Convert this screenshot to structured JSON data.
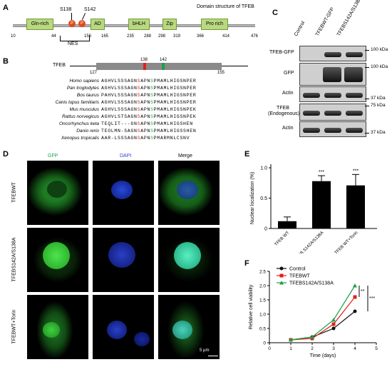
{
  "panelA": {
    "letter": "A",
    "title": "Domain structure of TFEB",
    "sites": [
      "S138",
      "S142"
    ],
    "nes": "NES",
    "domains": [
      {
        "name": "Gln-rich"
      },
      {
        "name": "AD"
      },
      {
        "name": "bHLH"
      },
      {
        "name": "Zip"
      },
      {
        "name": "Pro rich"
      }
    ],
    "positions": [
      "10",
      "44",
      "156",
      "165",
      "235",
      "288",
      "298",
      "319",
      "366",
      "414",
      "476"
    ]
  },
  "panelB": {
    "letter": "B",
    "protein": "TFEB",
    "ruler": [
      "127",
      "138",
      "142",
      "155"
    ],
    "rows": [
      {
        "species": "Homo sapiens",
        "pre": "AGHVLSSSAGN",
        "s1": "S",
        "mid": "APN",
        "s2": "S",
        "post": "PMAMLHIGSNPER"
      },
      {
        "species": "Pan troglodytes",
        "pre": "AGHVLSSSAGN",
        "s1": "S",
        "mid": "APN",
        "s2": "S",
        "post": "PMAMLHIGSNPER"
      },
      {
        "species": "Bos taurus",
        "pre": "PAHVLSSSAGN",
        "s1": "S",
        "mid": "APN",
        "s2": "S",
        "post": "PMAMLHIGSNPER"
      },
      {
        "species": "Canis lupus familiaris",
        "pre": "AGHVLSSSAGN",
        "s1": "S",
        "mid": "APN",
        "s2": "S",
        "post": "PMAMLHIGSNPER"
      },
      {
        "species": "Mus musculus",
        "pre": "AGHVLSSSAGN",
        "s1": "S",
        "mid": "APN",
        "s2": "S",
        "post": "PMAMLHIGSNPEK"
      },
      {
        "species": "Rattus norvegicus",
        "pre": "AGHVLSTSAGN",
        "s1": "S",
        "mid": "APN",
        "s2": "S",
        "post": "PMAMLHIGSNPEK"
      },
      {
        "species": "Oncorhynchus keta",
        "pre": "TEQLIT---GN",
        "s1": "S",
        "mid": "APN",
        "s2": "S",
        "post": "PMAMLHIGSHEN"
      },
      {
        "species": "Danio rerio",
        "pre": "TEOLMN-SAGN",
        "s1": "S",
        "mid": "APN",
        "s2": "S",
        "post": "PMAMLHIGSSHEN"
      },
      {
        "species": "Xenopus tropicalis",
        "pre": "AAR-LSSSAGN",
        "s1": "S",
        "mid": "APN",
        "s2": "S",
        "post": "PMARMNLCSNV"
      }
    ]
  },
  "panelC": {
    "letter": "C",
    "columns": [
      "Control",
      "TFEBWT-GFP",
      "TFEBS142A/S138A-GFP"
    ],
    "blots": [
      "TFEB-GFP",
      "GFP",
      "Actin",
      "TFEB (Endogenous)",
      "Actin"
    ],
    "markers": [
      "100 kDa",
      "100 kDa",
      "37 kDa",
      "75 kDa",
      "37 kDa"
    ]
  },
  "panelD": {
    "letter": "D",
    "channels": [
      "GFP",
      "DAPI",
      "Merge"
    ],
    "rows": [
      "TFEBWT",
      "TFEBS142A/S138A",
      "TFEBWT+Torin"
    ],
    "scale": "5 μm"
  },
  "panelE": {
    "letter": "E",
    "ylabel": "Nuclear localization (%)",
    "sig": [
      "***",
      "***"
    ]
  },
  "panelF": {
    "letter": "F",
    "ylabel": "Relative cell viability",
    "xlabel": "Time (days)",
    "stars": [
      "**",
      "***"
    ]
  },
  "chart_data": [
    {
      "type": "bar",
      "categories": [
        "TFEB WT",
        "TFEB S142A/S138A",
        "TFEB WT+Torin"
      ],
      "values": [
        0.12,
        0.78,
        0.71
      ],
      "errors": [
        0.07,
        0.09,
        0.18
      ],
      "ylabel": "Nuclear localization (%)",
      "ylim": [
        0,
        1.0
      ],
      "yticks": [
        "0",
        "0.5",
        "1.0"
      ],
      "bar_color": "#000000"
    },
    {
      "type": "line",
      "x": [
        1,
        2,
        3,
        4
      ],
      "xlim": [
        0,
        5
      ],
      "xticks": [
        "0",
        "1",
        "2",
        "3",
        "4",
        "5"
      ],
      "ylim": [
        0,
        2.5
      ],
      "yticks": [
        "0",
        "0.5",
        "1.0",
        "1.5",
        "2.0",
        "2.5"
      ],
      "xlabel": "Time (days)",
      "ylabel": "Relative cell viability",
      "series": [
        {
          "name": "Control",
          "values": [
            0.1,
            0.2,
            0.5,
            1.1
          ],
          "color": "#111111"
        },
        {
          "name": "TFEBWT",
          "values": [
            0.1,
            0.15,
            0.65,
            1.6
          ],
          "color": "#e02020"
        },
        {
          "name": "TFEBS142A/S138A",
          "values": [
            0.1,
            0.2,
            0.8,
            2.0
          ],
          "color": "#1aa04a"
        }
      ]
    }
  ]
}
